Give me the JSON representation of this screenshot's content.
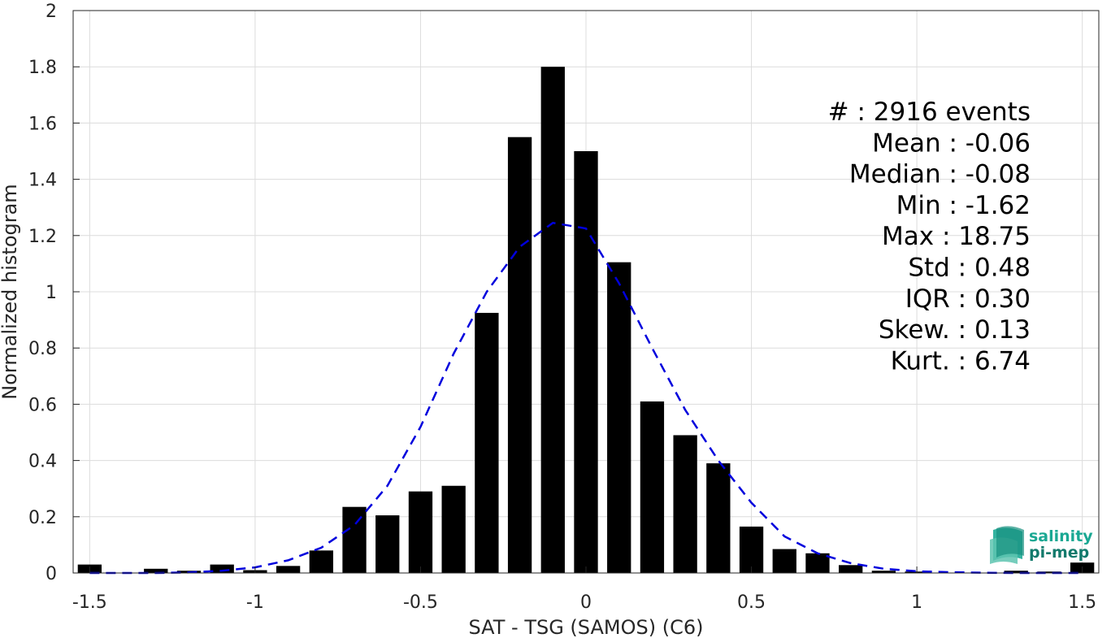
{
  "chart_data": {
    "type": "bar",
    "xlabel": "SAT - TSG (SAMOS) (C6)",
    "ylabel": "Normalized histogram",
    "xlim": [
      -1.55,
      1.55
    ],
    "ylim": [
      0,
      2
    ],
    "grid": true,
    "x_ticks": [
      -1.5,
      -1,
      -0.5,
      0,
      0.5,
      1,
      1.5
    ],
    "x_tick_labels": [
      "-1.5",
      "-1",
      "-0.5",
      "0",
      "0.5",
      "1",
      "1.5"
    ],
    "y_ticks": [
      0,
      0.2,
      0.4,
      0.6,
      0.8,
      1,
      1.2,
      1.4,
      1.6,
      1.8,
      2
    ],
    "y_tick_labels": [
      "0",
      "0.2",
      "0.4",
      "0.6",
      "0.8",
      "1",
      "1.2",
      "1.4",
      "1.6",
      "1.8",
      "2"
    ],
    "bin_width": 0.1,
    "bars": [
      {
        "x": -1.5,
        "value": 0.03
      },
      {
        "x": -1.4,
        "value": 0.0
      },
      {
        "x": -1.3,
        "value": 0.015
      },
      {
        "x": -1.2,
        "value": 0.008
      },
      {
        "x": -1.1,
        "value": 0.03
      },
      {
        "x": -1.0,
        "value": 0.01
      },
      {
        "x": -0.9,
        "value": 0.025
      },
      {
        "x": -0.8,
        "value": 0.08
      },
      {
        "x": -0.7,
        "value": 0.235
      },
      {
        "x": -0.6,
        "value": 0.205
      },
      {
        "x": -0.5,
        "value": 0.29
      },
      {
        "x": -0.4,
        "value": 0.31
      },
      {
        "x": -0.3,
        "value": 0.925
      },
      {
        "x": -0.2,
        "value": 1.55
      },
      {
        "x": -0.1,
        "value": 1.8
      },
      {
        "x": 0.0,
        "value": 1.5
      },
      {
        "x": 0.1,
        "value": 1.105
      },
      {
        "x": 0.2,
        "value": 0.61
      },
      {
        "x": 0.3,
        "value": 0.49
      },
      {
        "x": 0.4,
        "value": 0.39
      },
      {
        "x": 0.5,
        "value": 0.165
      },
      {
        "x": 0.6,
        "value": 0.085
      },
      {
        "x": 0.7,
        "value": 0.07
      },
      {
        "x": 0.8,
        "value": 0.028
      },
      {
        "x": 0.9,
        "value": 0.008
      },
      {
        "x": 1.0,
        "value": 0.005
      },
      {
        "x": 1.1,
        "value": 0.0
      },
      {
        "x": 1.2,
        "value": 0.0
      },
      {
        "x": 1.3,
        "value": 0.008
      },
      {
        "x": 1.4,
        "value": 0.005
      },
      {
        "x": 1.5,
        "value": 0.037
      }
    ],
    "fit_curve": {
      "style": "dashed",
      "color": "#0000dd",
      "points": [
        [
          -1.5,
          0.0
        ],
        [
          -1.4,
          0.0
        ],
        [
          -1.3,
          0.0
        ],
        [
          -1.2,
          0.002
        ],
        [
          -1.1,
          0.008
        ],
        [
          -1.0,
          0.02
        ],
        [
          -0.9,
          0.045
        ],
        [
          -0.8,
          0.09
        ],
        [
          -0.7,
          0.17
        ],
        [
          -0.6,
          0.31
        ],
        [
          -0.5,
          0.52
        ],
        [
          -0.4,
          0.78
        ],
        [
          -0.3,
          1.0
        ],
        [
          -0.2,
          1.16
        ],
        [
          -0.1,
          1.245
        ],
        [
          0.0,
          1.225
        ],
        [
          0.1,
          1.03
        ],
        [
          0.2,
          0.8
        ],
        [
          0.3,
          0.58
        ],
        [
          0.4,
          0.4
        ],
        [
          0.5,
          0.25
        ],
        [
          0.6,
          0.13
        ],
        [
          0.7,
          0.07
        ],
        [
          0.8,
          0.035
        ],
        [
          0.9,
          0.015
        ],
        [
          1.0,
          0.006
        ],
        [
          1.1,
          0.003
        ],
        [
          1.2,
          0.001
        ],
        [
          1.3,
          0.0
        ],
        [
          1.4,
          0.0
        ],
        [
          1.5,
          0.0
        ]
      ]
    },
    "stats": [
      {
        "label": "#  ",
        "value": "2916 events"
      },
      {
        "label": "Mean",
        "value": "-0.06"
      },
      {
        "label": "Median",
        "value": "-0.08"
      },
      {
        "label": "Min",
        "value": "-1.62"
      },
      {
        "label": "Max",
        "value": "18.75"
      },
      {
        "label": "Std",
        "value": "0.48"
      },
      {
        "label": "IQR",
        "value": "0.30"
      },
      {
        "label": "Skew.",
        "value": "0.13"
      },
      {
        "label": "Kurt.",
        "value": "6.74"
      }
    ]
  },
  "logo": {
    "line1": "salinity",
    "line2": "pi-mep",
    "color": "#1aa893"
  }
}
